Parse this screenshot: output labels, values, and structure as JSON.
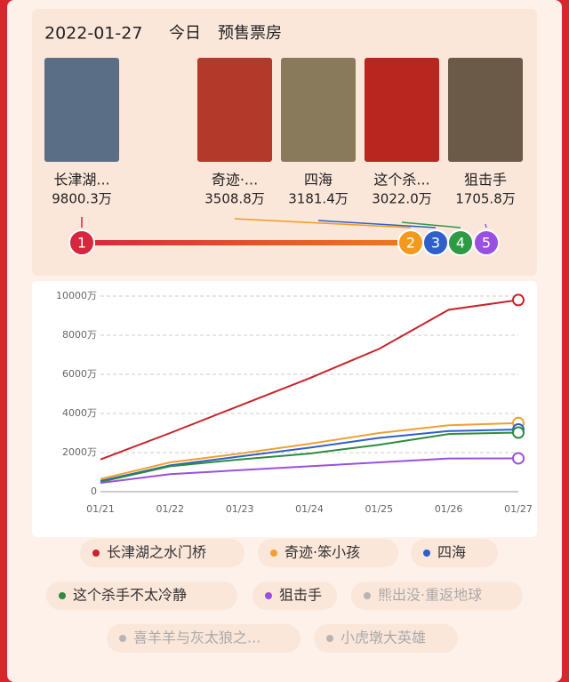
{
  "header": {
    "date": "2022-01-27",
    "today": "今日",
    "title": "预售票房"
  },
  "movies": [
    {
      "rank": 1,
      "name": "长津湖...",
      "gross": "9800.3万",
      "color": "#d7263d"
    },
    {
      "rank": 2,
      "name": "奇迹·...",
      "gross": "3508.8万",
      "color": "#f29a1d"
    },
    {
      "rank": 3,
      "name": "四海",
      "gross": "3181.4万",
      "color": "#2f5fc9"
    },
    {
      "rank": 4,
      "name": "这个杀...",
      "gross": "3022.0万",
      "color": "#2e9a43"
    },
    {
      "rank": 5,
      "name": "狙击手",
      "gross": "1705.8万",
      "color": "#9b4fe0"
    }
  ],
  "chart_data": {
    "type": "line",
    "categories": [
      "01/21",
      "01/22",
      "01/23",
      "01/24",
      "01/25",
      "01/26",
      "01/27"
    ],
    "ylim": [
      0,
      10500
    ],
    "yticks": [
      0,
      {
        "value": 2000,
        "label": "2000万"
      },
      {
        "value": 4000,
        "label": "4000万"
      },
      {
        "value": 6000,
        "label": "6000万"
      },
      {
        "value": 8000,
        "label": "8000万"
      },
      {
        "value": 10000,
        "label": "10000万"
      }
    ],
    "grid": true,
    "series": [
      {
        "name": "长津湖之水门桥",
        "color": "#c8232c",
        "values": [
          1650,
          3000,
          4400,
          5800,
          7300,
          9300,
          9800
        ]
      },
      {
        "name": "奇迹·笨小孩",
        "color": "#f0a030",
        "values": [
          650,
          1500,
          1950,
          2450,
          3000,
          3400,
          3509
        ]
      },
      {
        "name": "四海",
        "color": "#2f5fc9",
        "values": [
          550,
          1350,
          1800,
          2250,
          2750,
          3100,
          3181
        ]
      },
      {
        "name": "这个杀手不太冷静",
        "color": "#2e8b3d",
        "values": [
          500,
          1300,
          1650,
          1950,
          2400,
          2950,
          3022
        ]
      },
      {
        "name": "狙击手",
        "color": "#9b4fe0",
        "values": [
          450,
          900,
          1100,
          1300,
          1500,
          1700,
          1706
        ]
      },
      {
        "name": "熊出没·重返地球",
        "color": "#b5b5b5",
        "values": [
          null,
          null,
          null,
          null,
          null,
          null,
          null
        ]
      },
      {
        "name": "喜羊羊与灰太狼之...",
        "color": "#b5b5b5",
        "values": [
          null,
          null,
          null,
          null,
          null,
          null,
          null
        ]
      },
      {
        "name": "小虎墩大英雄",
        "color": "#b5b5b5",
        "values": [
          null,
          null,
          null,
          null,
          null,
          null,
          null
        ]
      }
    ]
  }
}
